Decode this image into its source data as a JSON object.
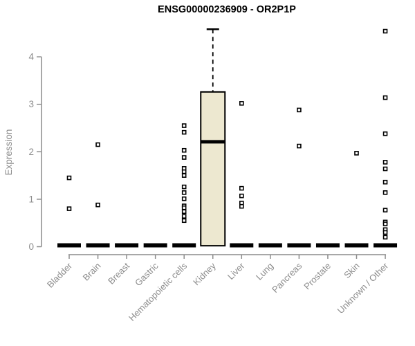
{
  "chart_data": {
    "type": "boxplot",
    "title": "ENSG00000236909 - OR2P1P",
    "ylabel": "Expression",
    "xlabel": "",
    "ylim": [
      0,
      4.6
    ],
    "yticks": [
      0,
      1,
      2,
      3,
      4
    ],
    "grid": false,
    "legend": "none",
    "categories": [
      "Bladder",
      "Brain",
      "Breast",
      "Gastric",
      "Hematopoietic cells",
      "Kidney",
      "Liver",
      "Lung",
      "Pancreas",
      "Prostate",
      "Skin",
      "Unknown / Other"
    ],
    "series": [
      {
        "category": "Bladder",
        "median": 0,
        "q1": 0,
        "q3": 0,
        "whisker_low": 0,
        "whisker_high": 0,
        "outliers": [
          1.45,
          0.8
        ]
      },
      {
        "category": "Brain",
        "median": 0,
        "q1": 0,
        "q3": 0,
        "whisker_low": 0,
        "whisker_high": 0,
        "outliers": [
          2.15,
          0.88
        ]
      },
      {
        "category": "Breast",
        "median": 0,
        "q1": 0,
        "q3": 0,
        "whisker_low": 0,
        "whisker_high": 0,
        "outliers": []
      },
      {
        "category": "Gastric",
        "median": 0,
        "q1": 0,
        "q3": 0,
        "whisker_low": 0,
        "whisker_high": 0,
        "outliers": []
      },
      {
        "category": "Hematopoietic cells",
        "median": 0,
        "q1": 0,
        "q3": 0,
        "whisker_low": 0,
        "whisker_high": 0,
        "outliers": [
          2.55,
          2.41,
          2.03,
          1.88,
          1.65,
          1.58,
          1.5,
          1.26,
          1.14,
          1.01,
          0.86,
          0.82,
          0.74,
          0.64,
          0.55
        ]
      },
      {
        "category": "Kidney",
        "median": 2.21,
        "q1": 0.02,
        "q3": 3.26,
        "whisker_low": 0,
        "whisker_high": 4.58,
        "outliers": []
      },
      {
        "category": "Liver",
        "median": 0,
        "q1": 0,
        "q3": 0,
        "whisker_low": 0,
        "whisker_high": 0,
        "outliers": [
          3.02,
          1.23,
          1.07,
          0.92,
          0.85
        ]
      },
      {
        "category": "Lung",
        "median": 0,
        "q1": 0,
        "q3": 0,
        "whisker_low": 0,
        "whisker_high": 0,
        "outliers": []
      },
      {
        "category": "Pancreas",
        "median": 0,
        "q1": 0,
        "q3": 0,
        "whisker_low": 0,
        "whisker_high": 0,
        "outliers": [
          2.88,
          2.12
        ]
      },
      {
        "category": "Prostate",
        "median": 0,
        "q1": 0,
        "q3": 0,
        "whisker_low": 0,
        "whisker_high": 0,
        "outliers": []
      },
      {
        "category": "Skin",
        "median": 0,
        "q1": 0,
        "q3": 0,
        "whisker_low": 0,
        "whisker_high": 0,
        "outliers": [
          1.97
        ]
      },
      {
        "category": "Unknown / Other",
        "median": 0,
        "q1": 0,
        "q3": 0,
        "whisker_low": 0,
        "whisker_high": 0,
        "outliers": [
          4.54,
          3.14,
          2.38,
          1.78,
          1.64,
          1.36,
          1.14,
          0.77,
          0.52,
          0.48,
          0.36,
          0.3,
          0.2
        ]
      }
    ],
    "colors": {
      "box_fill": "#ede8d0",
      "box_border": "#000000",
      "axis": "#8c8c8c",
      "title": "#000000"
    }
  }
}
